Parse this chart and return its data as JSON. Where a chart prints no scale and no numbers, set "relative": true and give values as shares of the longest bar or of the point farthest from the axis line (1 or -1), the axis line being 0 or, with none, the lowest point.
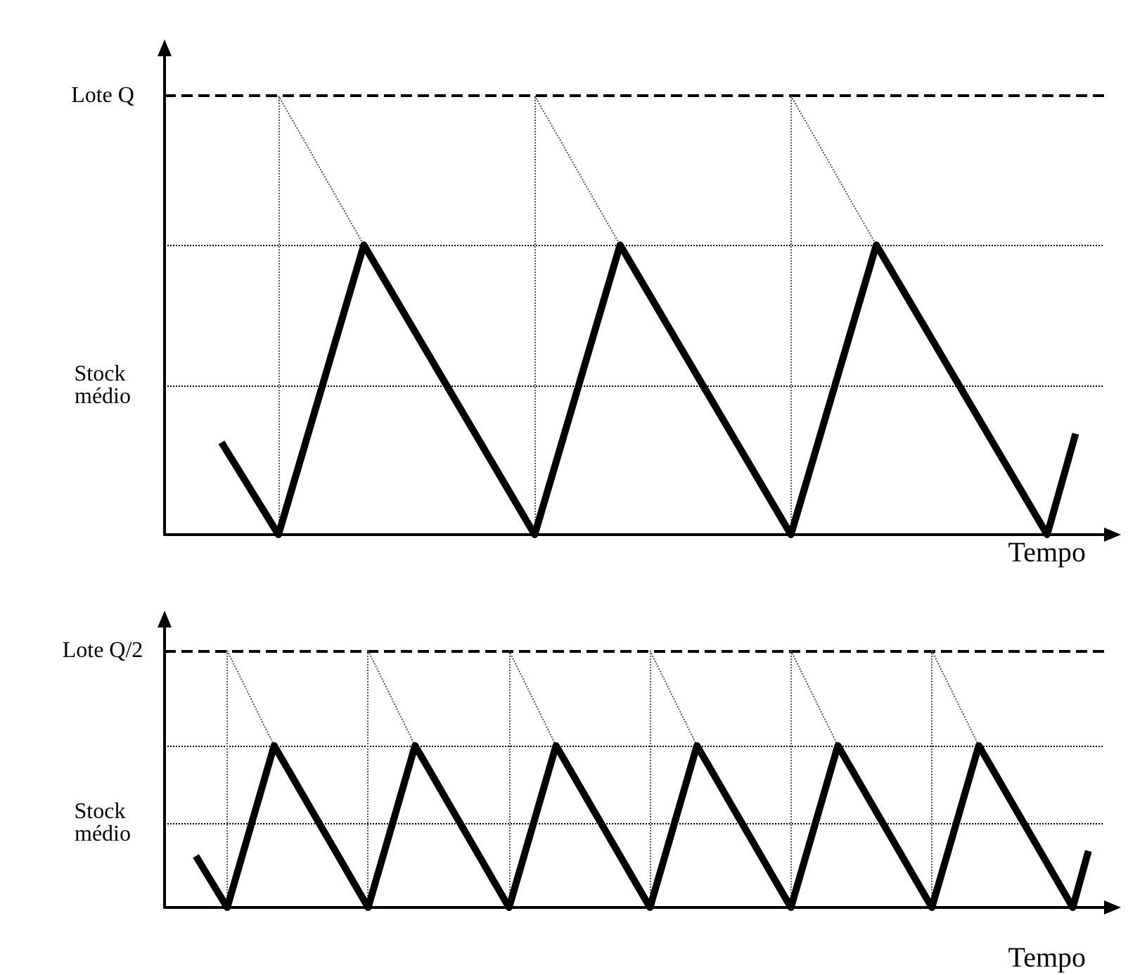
{
  "chart_data": [
    {
      "type": "line",
      "relative": true,
      "xlabel": "Tempo",
      "grid": "x",
      "marker": "none",
      "categories": [
        null,
        null,
        null,
        null,
        null,
        null,
        null,
        null,
        null,
        null,
        null,
        null,
        null,
        null,
        null,
        null,
        null,
        null,
        null,
        null,
        null,
        null,
        null,
        null,
        null,
        null,
        null,
        null,
        null,
        null,
        null,
        null,
        null,
        null
      ],
      "series": [
        {
          "color": "#000000",
          "line_style": "solid",
          "values": [
            null,
            null,
            0.21,
            0.105,
            0,
            0.22,
            0.44,
            0.66,
            0.55,
            0.44,
            0.33,
            0.22,
            0.11,
            0,
            0.22,
            0.44,
            0.66,
            0.55,
            0.44,
            0.33,
            0.22,
            0.11,
            0,
            0.22,
            0.44,
            0.66,
            0.55,
            0.44,
            0.33,
            0.22,
            0.11,
            0,
            0.23,
            null
          ]
        },
        {
          "color": "#555555",
          "line_style": "dotted",
          "values": [
            null,
            null,
            null,
            null,
            1,
            0.887,
            0.773,
            0.66,
            null,
            null,
            null,
            null,
            null,
            1,
            0.887,
            0.773,
            0.66,
            null,
            null,
            null,
            null,
            null,
            1,
            0.887,
            0.773,
            0.66,
            null,
            null,
            null,
            null,
            null,
            null,
            null,
            null
          ]
        }
      ],
      "ref_lines": [
        {
          "axis": "y",
          "value": 1,
          "label": "Lote Q",
          "line_style": "dashed",
          "color": "#000000"
        },
        {
          "axis": "y",
          "value": 0.66,
          "line_style": "dotted",
          "color": "#000000"
        },
        {
          "axis": "y",
          "value": 0.34,
          "label": "Stock médio",
          "line_style": "dotted",
          "color": "#000000"
        }
      ]
    },
    {
      "type": "line",
      "relative": true,
      "xlabel": "Tempo",
      "grid": "x",
      "marker": "none",
      "categories": [
        null,
        null,
        null,
        null,
        null,
        null,
        null,
        null,
        null,
        null,
        null,
        null,
        null,
        null,
        null,
        null,
        null,
        null,
        null,
        null,
        null,
        null,
        null,
        null,
        null,
        null,
        null,
        null,
        null,
        null,
        null,
        null,
        null,
        null,
        null,
        null,
        null,
        null,
        null,
        null,
        null,
        null,
        null,
        null,
        null,
        null,
        null,
        null,
        null,
        null,
        null,
        null,
        null,
        null,
        null,
        null,
        null,
        null,
        null,
        null,
        null
      ],
      "series": [
        {
          "color": "#000000",
          "line_style": "solid",
          "values": [
            null,
            null,
            0.2,
            0.1,
            0,
            0.21,
            0.42,
            0.63,
            0.525,
            0.42,
            0.315,
            0.21,
            0.105,
            0,
            0.21,
            0.42,
            0.63,
            0.525,
            0.42,
            0.315,
            0.21,
            0.105,
            0,
            0.21,
            0.42,
            0.63,
            0.525,
            0.42,
            0.315,
            0.21,
            0.105,
            0,
            0.21,
            0.42,
            0.63,
            0.525,
            0.42,
            0.315,
            0.21,
            0.105,
            0,
            0.21,
            0.42,
            0.63,
            0.525,
            0.42,
            0.315,
            0.21,
            0.105,
            0,
            0.21,
            0.42,
            0.63,
            0.525,
            0.42,
            0.315,
            0.21,
            0.105,
            0,
            0.22,
            null
          ]
        },
        {
          "color": "#555555",
          "line_style": "dotted",
          "values": [
            null,
            null,
            null,
            null,
            1,
            0.877,
            0.753,
            0.63,
            null,
            null,
            null,
            null,
            null,
            1,
            0.877,
            0.753,
            0.63,
            null,
            null,
            null,
            null,
            null,
            1,
            0.877,
            0.753,
            0.63,
            null,
            null,
            null,
            null,
            null,
            1,
            0.877,
            0.753,
            0.63,
            null,
            null,
            null,
            null,
            null,
            1,
            0.877,
            0.753,
            0.63,
            null,
            null,
            null,
            null,
            null,
            1,
            0.877,
            0.753,
            0.63,
            null,
            null,
            null,
            null,
            null,
            null,
            null,
            null
          ]
        }
      ],
      "ref_lines": [
        {
          "axis": "y",
          "value": 1,
          "label": "Lote Q/2",
          "line_style": "dashed",
          "color": "#000000"
        },
        {
          "axis": "y",
          "value": 0.63,
          "line_style": "dotted",
          "color": "#000000"
        },
        {
          "axis": "y",
          "value": 0.33,
          "label": "Stock médio",
          "line_style": "dotted",
          "color": "#000000"
        }
      ]
    }
  ]
}
